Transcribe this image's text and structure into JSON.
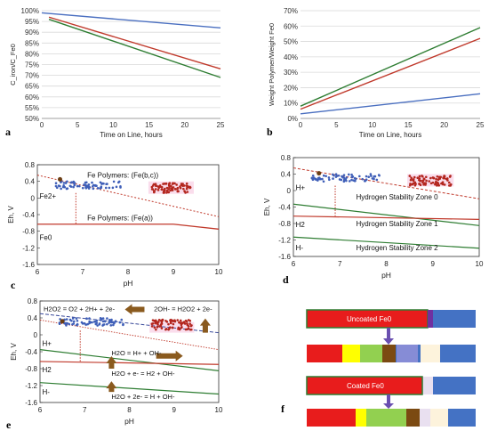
{
  "chart_data": [
    {
      "panel": "a",
      "type": "line",
      "xlabel": "Time on Line, hours",
      "ylabel": "C_iron/C_Fe0",
      "xlim": [
        0,
        25
      ],
      "ylim": [
        50,
        100
      ],
      "xticks": [
        "0",
        "5",
        "10",
        "15",
        "20",
        "25"
      ],
      "yticks": [
        "50%",
        "55%",
        "60%",
        "65%",
        "70%",
        "75%",
        "80%",
        "85%",
        "90%",
        "95%",
        "100%"
      ],
      "grid": true,
      "series": [
        {
          "color": "#4a6fc0",
          "x": [
            0,
            25
          ],
          "y": [
            99,
            92
          ]
        },
        {
          "color": "#c0392b",
          "x": [
            1,
            25
          ],
          "y": [
            97,
            73
          ]
        },
        {
          "color": "#2e7d32",
          "x": [
            1,
            25
          ],
          "y": [
            96,
            69
          ]
        }
      ]
    },
    {
      "panel": "b",
      "type": "line",
      "xlabel": "Time on Line, hours",
      "ylabel": "Weight Polymer/Weight Fe0",
      "xlim": [
        0,
        25
      ],
      "ylim": [
        0,
        70
      ],
      "xticks": [
        "0",
        "5",
        "10",
        "15",
        "20",
        "25"
      ],
      "yticks": [
        "0%",
        "10%",
        "20%",
        "30%",
        "40%",
        "50%",
        "60%",
        "70%"
      ],
      "grid": true,
      "series": [
        {
          "color": "#4a6fc0",
          "x": [
            0,
            25
          ],
          "y": [
            3,
            16
          ]
        },
        {
          "color": "#c0392b",
          "x": [
            0,
            25
          ],
          "y": [
            6,
            52
          ]
        },
        {
          "color": "#2e7d32",
          "x": [
            0,
            25
          ],
          "y": [
            8,
            59
          ]
        }
      ]
    },
    {
      "panel": "c",
      "type": "scatter",
      "xlabel": "pH",
      "ylabel": "Eh, V",
      "xlim": [
        6,
        10
      ],
      "ylim": [
        -1.6,
        0.8
      ],
      "xticks": [
        "6",
        "7",
        "8",
        "9",
        "10"
      ],
      "yticks": [
        "0.8",
        "0.4",
        "0",
        "-0.4",
        "-0.8",
        "-1.2",
        "-1.6"
      ],
      "annotations": [
        "Fe Polymers: (Fe(b,c))",
        "Fe2+",
        "Fe Polymers: (Fe(a))",
        "Fe0"
      ]
    },
    {
      "panel": "d",
      "type": "scatter",
      "xlabel": "pH",
      "ylabel": "Eh, V",
      "xlim": [
        6,
        10
      ],
      "ylim": [
        -1.6,
        0.8
      ],
      "xticks": [
        "6",
        "7",
        "8",
        "9",
        "10"
      ],
      "yticks": [
        "0.8",
        "0.4",
        "0",
        "-0.4",
        "-0.8",
        "-1.2",
        "-1.6"
      ],
      "annotations": [
        "H+",
        "Hydrogen Stability Zone 0",
        "H2",
        "Hydrogen Stability Zone 1",
        "H-",
        "Hydrogen Stability Zone 2"
      ]
    },
    {
      "panel": "e",
      "type": "scatter",
      "xlabel": "pH",
      "ylabel": "Eh, V",
      "xlim": [
        6,
        10
      ],
      "ylim": [
        -1.6,
        0.8
      ],
      "xticks": [
        "6",
        "7",
        "8",
        "9",
        "10"
      ],
      "yticks": [
        "0.8",
        "0.4",
        "0",
        "-0.4",
        "-0.8",
        "-1.2",
        "-1.6"
      ],
      "annotations": [
        "H2O2 = O2 + 2H+ + 2e-",
        "2OH- = H2O2 + 2e-",
        "H+",
        "H2O = H+ + OH-",
        "H2",
        "H2O + e- = H2 + OH-",
        "H-",
        "H2O + 2e- = H + OH-"
      ]
    }
  ],
  "panel_labels": {
    "a": "a",
    "b": "b",
    "c": "c",
    "d": "d",
    "e": "e",
    "f": "f"
  },
  "f_bars": {
    "uncoated_label": "Uncoated Fe0",
    "coated_label": "Coated Fe0"
  },
  "colors": {
    "blue": "#4a6fc0",
    "red": "#c0392b",
    "green": "#2e7d32",
    "bar_blue": "#4472c4",
    "bar_red": "#e81c1c",
    "bar_green": "#92d050",
    "bar_yellow": "#ffff00",
    "bar_brown": "#7b4a12",
    "bar_cream": "#fdf3dc",
    "bar_purple": "#7030a0",
    "arrow_brown": "#8a5a1e"
  }
}
